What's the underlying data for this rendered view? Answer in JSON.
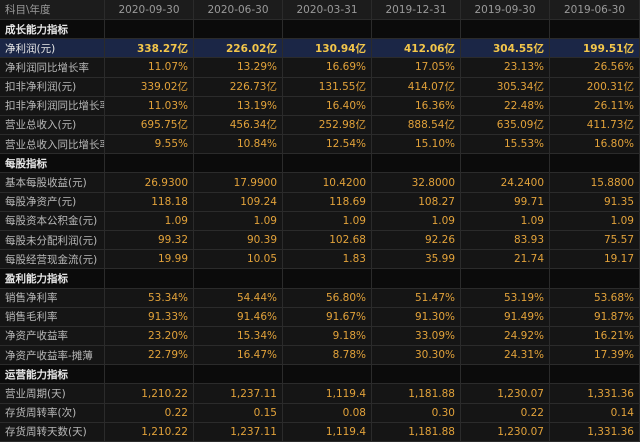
{
  "header": [
    "科目\\年度",
    "2020-09-30",
    "2020-06-30",
    "2020-03-31",
    "2019-12-31",
    "2019-09-30",
    "2019-06-30"
  ],
  "sections": [
    {
      "title": "成长能力指标",
      "rows": [
        {
          "label": "净利润(元)",
          "values": [
            "338.27亿",
            "226.02亿",
            "130.94亿",
            "412.06亿",
            "304.55亿",
            "199.51亿"
          ]
        },
        {
          "label": "净利润同比增长率",
          "values": [
            "11.07%",
            "13.29%",
            "16.69%",
            "17.05%",
            "23.13%",
            "26.56%"
          ]
        },
        {
          "label": "扣非净利润(元)",
          "values": [
            "339.02亿",
            "226.73亿",
            "131.55亿",
            "414.07亿",
            "305.34亿",
            "200.31亿"
          ]
        },
        {
          "label": "扣非净利润同比增长率",
          "values": [
            "11.03%",
            "13.19%",
            "16.40%",
            "16.36%",
            "22.48%",
            "26.11%"
          ]
        },
        {
          "label": "营业总收入(元)",
          "values": [
            "695.75亿",
            "456.34亿",
            "252.98亿",
            "888.54亿",
            "635.09亿",
            "411.73亿"
          ]
        },
        {
          "label": "营业总收入同比增长率",
          "values": [
            "9.55%",
            "10.84%",
            "12.54%",
            "15.10%",
            "15.53%",
            "16.80%"
          ]
        }
      ]
    },
    {
      "title": "每股指标",
      "rows": [
        {
          "label": "基本每股收益(元)",
          "values": [
            "26.9300",
            "17.9900",
            "10.4200",
            "32.8000",
            "24.2400",
            "15.8800"
          ]
        },
        {
          "label": "每股净资产(元)",
          "values": [
            "118.18",
            "109.24",
            "118.69",
            "108.27",
            "99.71",
            "91.35"
          ]
        },
        {
          "label": "每股资本公积金(元)",
          "values": [
            "1.09",
            "1.09",
            "1.09",
            "1.09",
            "1.09",
            "1.09"
          ]
        },
        {
          "label": "每股未分配利润(元)",
          "values": [
            "99.32",
            "90.39",
            "102.68",
            "92.26",
            "83.93",
            "75.57"
          ]
        },
        {
          "label": "每股经营现金流(元)",
          "values": [
            "19.99",
            "10.05",
            "1.83",
            "35.99",
            "21.74",
            "19.17"
          ]
        }
      ]
    },
    {
      "title": "盈利能力指标",
      "rows": [
        {
          "label": "销售净利率",
          "values": [
            "53.34%",
            "54.44%",
            "56.80%",
            "51.47%",
            "53.19%",
            "53.68%"
          ]
        },
        {
          "label": "销售毛利率",
          "values": [
            "91.33%",
            "91.46%",
            "91.67%",
            "91.30%",
            "91.49%",
            "91.87%"
          ]
        },
        {
          "label": "净资产收益率",
          "values": [
            "23.20%",
            "15.34%",
            "9.18%",
            "33.09%",
            "24.92%",
            "16.21%"
          ]
        },
        {
          "label": "净资产收益率-摊薄",
          "values": [
            "22.79%",
            "16.47%",
            "8.78%",
            "30.30%",
            "24.31%",
            "17.39%"
          ]
        }
      ]
    },
    {
      "title": "运营能力指标",
      "rows": [
        {
          "label": "营业周期(天)",
          "values": [
            "1,210.22",
            "1,237.11",
            "1,119.4",
            "1,181.88",
            "1,230.07",
            "1,331.36"
          ]
        },
        {
          "label": "存货周转率(次)",
          "values": [
            "0.22",
            "0.15",
            "0.08",
            "0.30",
            "0.22",
            "0.14"
          ]
        },
        {
          "label": "存货周转天数(天)",
          "values": [
            "1,210.22",
            "1,237.11",
            "1,119.4",
            "1,181.88",
            "1,230.07",
            "1,331.36"
          ]
        }
      ]
    }
  ]
}
